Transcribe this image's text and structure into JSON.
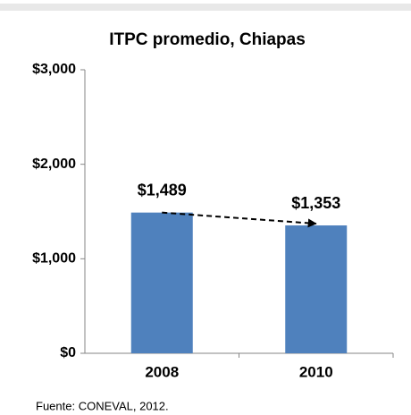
{
  "chart_data": {
    "type": "bar",
    "title": "ITPC promedio, Chiapas",
    "categories": [
      "2008",
      "2010"
    ],
    "values": [
      1489,
      1353
    ],
    "value_labels": [
      "$1,489",
      "$1,353"
    ],
    "color": "#4f81bd",
    "ylim": [
      0,
      3000
    ],
    "yticks": [
      {
        "value": 0,
        "label": "$0"
      },
      {
        "value": 1000,
        "label": "$1,000"
      },
      {
        "value": 2000,
        "label": "$2,000"
      },
      {
        "value": 3000,
        "label": "$3,000"
      }
    ],
    "grid": false,
    "source": "Fuente: CONEVAL, 2012."
  }
}
